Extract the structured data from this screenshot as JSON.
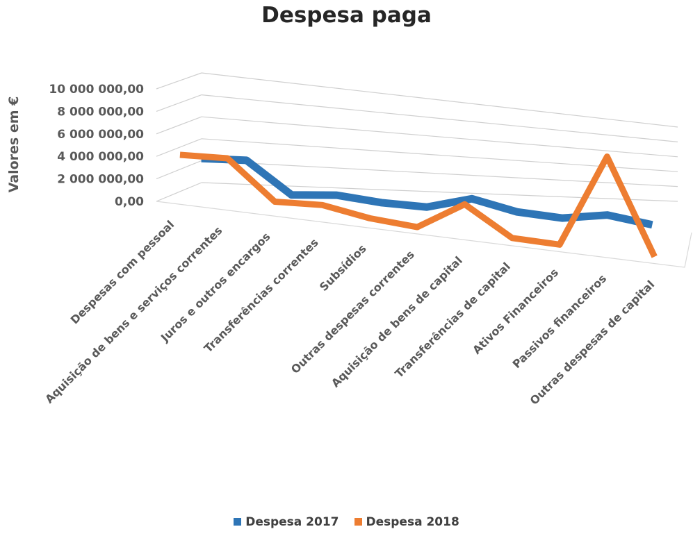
{
  "chart_data": {
    "type": "line",
    "title": "Despesa paga",
    "ylabel": "Valores em €",
    "ylim": [
      0,
      10000000
    ],
    "y_ticks": [
      "0,00",
      "2 000 000,00",
      "4 000 000,00",
      "6 000 000,00",
      "8 000 000,00",
      "10 000 000,00"
    ],
    "grid": true,
    "legend_position": "bottom",
    "categories": [
      "Despesas com pessoal",
      "Aquisição de bens e serviços correntes",
      "Juros e outros encargos",
      "Transferências correntes",
      "Subsídios",
      "Outras despesas correntes",
      "Aquisição de bens de capital",
      "Transferências de capital",
      "Ativos Financeiros",
      "Passivos financeiros",
      "Outras despesas de capital"
    ],
    "series": [
      {
        "name": "Despesa 2017",
        "color": "#2E75B6",
        "values": [
          3000000,
          3200000,
          300000,
          600000,
          200000,
          100000,
          1300000,
          300000,
          0,
          700000,
          0
        ]
      },
      {
        "name": "Despesa 2018",
        "color": "#ED7D31",
        "values": [
          4200000,
          4400000,
          1000000,
          1200000,
          500000,
          200000,
          2800000,
          200000,
          100000,
          8800000,
          0
        ]
      }
    ]
  }
}
